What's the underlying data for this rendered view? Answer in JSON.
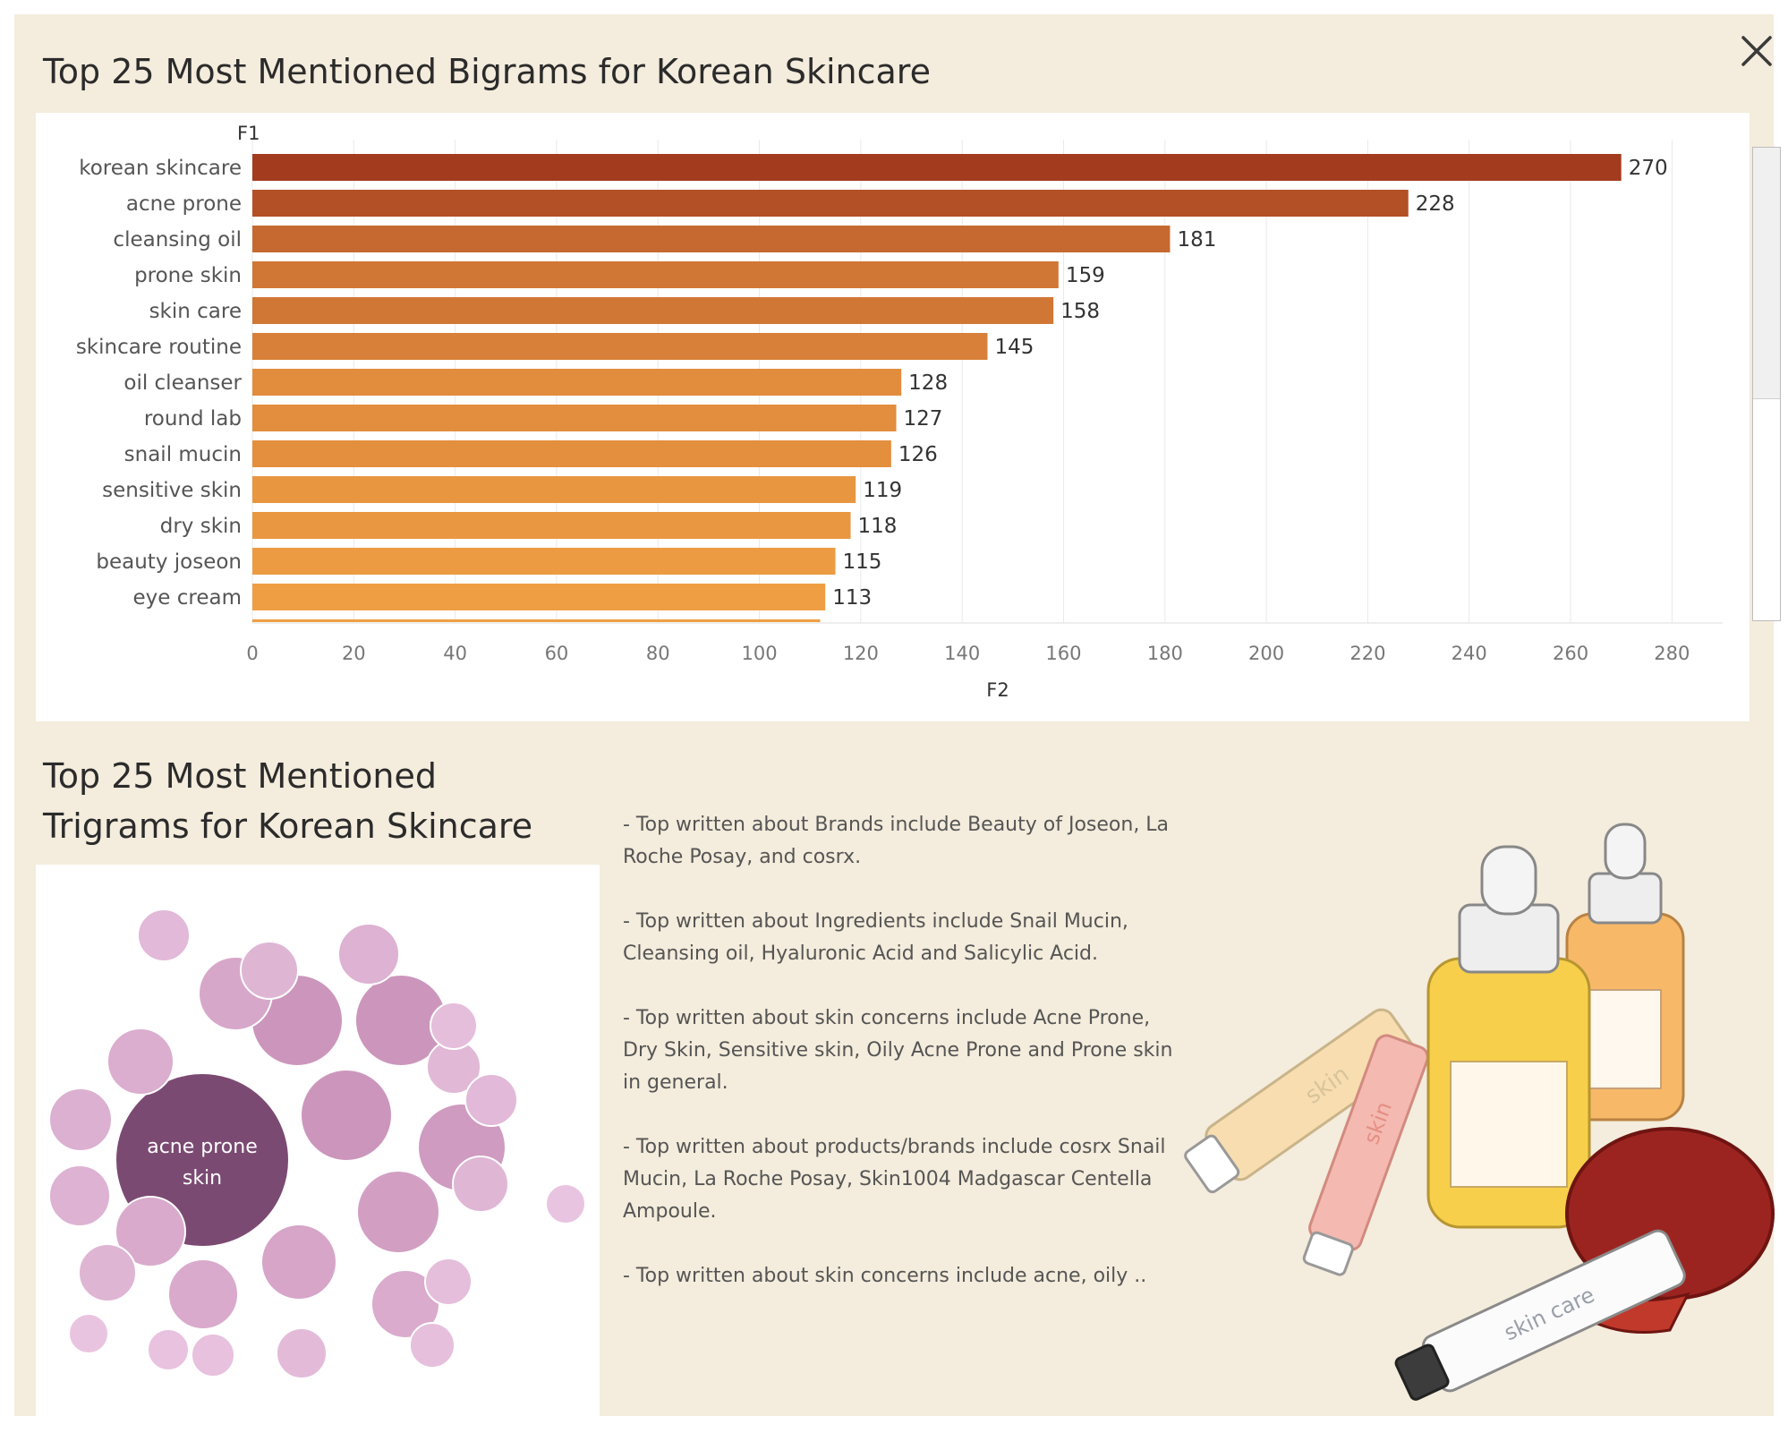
{
  "header": {
    "title": "Top 25 Most Mentioned Bigrams for Korean Skincare"
  },
  "trigram_section": {
    "title_line1": "Top 25 Most Mentioned",
    "title_line2": "Trigrams for Korean Skincare"
  },
  "insights": [
    "- Top written about Brands include Beauty of Joseon, La Roche Posay, and cosrx.",
    "- Top written about Ingredients include Snail Mucin, Cleansing oil, Hyaluronic Acid and Salicylic Acid.",
    "- Top written about skin concerns include Acne Prone, Dry Skin, Sensitive skin, Oily Acne Prone and Prone skin in general.",
    "- Top written about products/brands include cosrx Snail Mucin, La Roche Posay, Skin1004 Madgascar Centella Ampoule.",
    "- Top written about skin concerns include acne, oily .."
  ],
  "illustration": {
    "label1": "skin",
    "label2": "skin",
    "label3": "skin care"
  },
  "colors": {
    "background": "#f4ecdc",
    "bar_dark": "#a33c1f",
    "bar_light": "#f4a446",
    "bubble_dark": "#7b4a72",
    "bubble_light": "#e8c3de"
  },
  "chart_data": [
    {
      "type": "bar",
      "orientation": "horizontal",
      "title": "Top 25 Most Mentioned Bigrams for Korean Skincare",
      "xlabel": "F2",
      "ylabel": "F1",
      "categories": [
        "korean skincare",
        "acne prone",
        "cleansing oil",
        "prone skin",
        "skin care",
        "skincare routine",
        "oil cleanser",
        "round lab",
        "snail mucin",
        "sensitive skin",
        "dry skin",
        "beauty joseon",
        "eye cream"
      ],
      "values": [
        270,
        228,
        181,
        159,
        158,
        145,
        128,
        127,
        126,
        119,
        118,
        115,
        113
      ],
      "partial_next_value": 112,
      "xlim": [
        0,
        290
      ],
      "xticks": [
        0,
        20,
        40,
        60,
        80,
        100,
        120,
        140,
        160,
        180,
        200,
        220,
        240,
        260,
        280
      ],
      "grid": true
    },
    {
      "type": "bubble",
      "title": "Top 25 Most Mentioned Trigrams for Korean Skincare",
      "labels": [
        "acne prone skin"
      ],
      "relative_sizes": [
        1.0,
        0.53,
        0.53,
        0.53,
        0.5,
        0.47,
        0.43,
        0.42,
        0.4,
        0.4,
        0.39,
        0.38,
        0.36,
        0.35,
        0.35,
        0.33,
        0.33,
        0.32,
        0.31,
        0.3,
        0.3,
        0.29,
        0.27,
        0.27,
        0.26,
        0.25,
        0.24,
        0.23,
        0.23
      ]
    }
  ]
}
